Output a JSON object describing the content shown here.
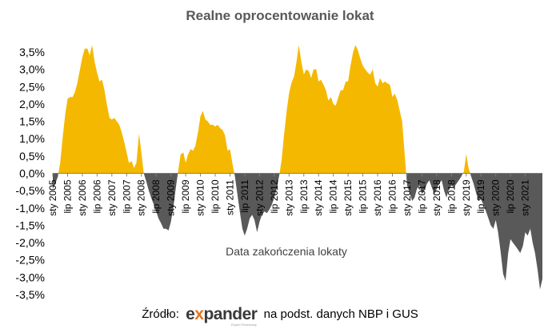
{
  "chart_data": {
    "type": "area",
    "title": "Realne oprocentowanie lokat",
    "xlabel": "Data zakończenia lokaty",
    "ylabel": "",
    "ylim": [
      -3.5,
      3.5
    ],
    "y_ticks": [
      "3,5%",
      "3,0%",
      "2,5%",
      "2,0%",
      "1,5%",
      "1,0%",
      "0,5%",
      "0,0%",
      "-0,5%",
      "-1,0%",
      "-1,5%",
      "-2,0%",
      "-2,5%",
      "-3,0%",
      "-3,5%"
    ],
    "x_range": [
      2005.0,
      2021.58
    ],
    "x_tick_labels": [
      {
        "label": "sty 2005",
        "x": 2005.0
      },
      {
        "label": "lip 2005",
        "x": 2005.5
      },
      {
        "label": "sty 2006",
        "x": 2006.0
      },
      {
        "label": "lip 2006",
        "x": 2006.5
      },
      {
        "label": "sty 2007",
        "x": 2007.0
      },
      {
        "label": "lip 2007",
        "x": 2007.5
      },
      {
        "label": "sty 2008",
        "x": 2008.0
      },
      {
        "label": "lip 2008",
        "x": 2008.5
      },
      {
        "label": "sty 2009",
        "x": 2009.0
      },
      {
        "label": "lip 2009",
        "x": 2009.5
      },
      {
        "label": "sty 2010",
        "x": 2010.0
      },
      {
        "label": "lip 2010",
        "x": 2010.5
      },
      {
        "label": "sty 2011",
        "x": 2011.0
      },
      {
        "label": "lip 2011",
        "x": 2011.5
      },
      {
        "label": "sty 2012",
        "x": 2012.0
      },
      {
        "label": "lip 2012",
        "x": 2012.5
      },
      {
        "label": "sty 2013",
        "x": 2013.0
      },
      {
        "label": "lip 2013",
        "x": 2013.5
      },
      {
        "label": "sty 2014",
        "x": 2014.0
      },
      {
        "label": "lip 2014",
        "x": 2014.5
      },
      {
        "label": "sty 2015",
        "x": 2015.0
      },
      {
        "label": "lip 2015",
        "x": 2015.5
      },
      {
        "label": "sty 2016",
        "x": 2016.0
      },
      {
        "label": "lip 2016",
        "x": 2016.5
      },
      {
        "label": "sty 2017",
        "x": 2017.0
      },
      {
        "label": "lip 2017",
        "x": 2017.5
      },
      {
        "label": "sty 2018",
        "x": 2018.0
      },
      {
        "label": "lip 2018",
        "x": 2018.5
      },
      {
        "label": "sty 2019",
        "x": 2019.0
      },
      {
        "label": "lip 2019",
        "x": 2019.5
      },
      {
        "label": "sty 2020",
        "x": 2020.0
      },
      {
        "label": "lip 2020",
        "x": 2020.5
      },
      {
        "label": "sty 2021",
        "x": 2021.0
      }
    ],
    "grid": false,
    "colors": {
      "positive": "#f5b800",
      "negative": "#595959"
    },
    "series": [
      {
        "points": [
          [
            2005.0,
            -0.45
          ],
          [
            2005.08,
            -0.3
          ],
          [
            2005.17,
            -0.1
          ],
          [
            2005.25,
            0.3
          ],
          [
            2005.33,
            1.0
          ],
          [
            2005.42,
            1.7
          ],
          [
            2005.5,
            2.15
          ],
          [
            2005.58,
            2.2
          ],
          [
            2005.67,
            2.2
          ],
          [
            2005.75,
            2.35
          ],
          [
            2005.83,
            2.6
          ],
          [
            2005.92,
            3.0
          ],
          [
            2006.0,
            3.35
          ],
          [
            2006.08,
            3.6
          ],
          [
            2006.17,
            3.6
          ],
          [
            2006.25,
            3.4
          ],
          [
            2006.33,
            3.7
          ],
          [
            2006.42,
            3.2
          ],
          [
            2006.5,
            2.9
          ],
          [
            2006.58,
            2.65
          ],
          [
            2006.67,
            2.7
          ],
          [
            2006.75,
            2.4
          ],
          [
            2006.83,
            2.0
          ],
          [
            2006.92,
            1.6
          ],
          [
            2007.0,
            1.55
          ],
          [
            2007.08,
            1.6
          ],
          [
            2007.17,
            1.5
          ],
          [
            2007.25,
            1.4
          ],
          [
            2007.33,
            1.2
          ],
          [
            2007.42,
            0.9
          ],
          [
            2007.5,
            0.6
          ],
          [
            2007.58,
            0.3
          ],
          [
            2007.67,
            0.35
          ],
          [
            2007.75,
            0.15
          ],
          [
            2007.83,
            0.3
          ],
          [
            2007.92,
            1.15
          ],
          [
            2008.0,
            0.6
          ],
          [
            2008.08,
            0.0
          ],
          [
            2008.17,
            -0.25
          ],
          [
            2008.25,
            -0.5
          ],
          [
            2008.33,
            -0.7
          ],
          [
            2008.42,
            -0.9
          ],
          [
            2008.5,
            -1.1
          ],
          [
            2008.58,
            -1.3
          ],
          [
            2008.67,
            -1.45
          ],
          [
            2008.75,
            -1.6
          ],
          [
            2008.83,
            -1.6
          ],
          [
            2008.92,
            -1.65
          ],
          [
            2009.0,
            -1.4
          ],
          [
            2009.08,
            -1.0
          ],
          [
            2009.17,
            -0.4
          ],
          [
            2009.25,
            0.1
          ],
          [
            2009.33,
            0.55
          ],
          [
            2009.42,
            0.6
          ],
          [
            2009.5,
            0.3
          ],
          [
            2009.58,
            0.55
          ],
          [
            2009.67,
            0.7
          ],
          [
            2009.75,
            0.65
          ],
          [
            2009.83,
            0.8
          ],
          [
            2009.92,
            1.2
          ],
          [
            2010.0,
            1.65
          ],
          [
            2010.08,
            1.8
          ],
          [
            2010.17,
            1.55
          ],
          [
            2010.25,
            1.5
          ],
          [
            2010.33,
            1.4
          ],
          [
            2010.42,
            1.4
          ],
          [
            2010.5,
            1.35
          ],
          [
            2010.58,
            1.4
          ],
          [
            2010.67,
            1.3
          ],
          [
            2010.75,
            1.25
          ],
          [
            2010.83,
            1.1
          ],
          [
            2010.92,
            0.65
          ],
          [
            2011.0,
            0.7
          ],
          [
            2011.08,
            0.3
          ],
          [
            2011.17,
            -0.1
          ],
          [
            2011.25,
            -0.6
          ],
          [
            2011.33,
            -1.1
          ],
          [
            2011.42,
            -1.6
          ],
          [
            2011.5,
            -1.8
          ],
          [
            2011.58,
            -1.6
          ],
          [
            2011.67,
            -1.3
          ],
          [
            2011.75,
            -1.2
          ],
          [
            2011.83,
            -1.35
          ],
          [
            2011.92,
            -1.7
          ],
          [
            2012.0,
            -1.4
          ],
          [
            2012.08,
            -1.2
          ],
          [
            2012.17,
            -1.1
          ],
          [
            2012.25,
            -1.15
          ],
          [
            2012.33,
            -1.05
          ],
          [
            2012.42,
            -0.9
          ],
          [
            2012.5,
            -0.7
          ],
          [
            2012.58,
            -0.45
          ],
          [
            2012.67,
            -0.05
          ],
          [
            2012.75,
            0.4
          ],
          [
            2012.83,
            1.1
          ],
          [
            2012.92,
            1.8
          ],
          [
            2013.0,
            2.3
          ],
          [
            2013.08,
            2.6
          ],
          [
            2013.17,
            2.8
          ],
          [
            2013.25,
            3.2
          ],
          [
            2013.33,
            3.7
          ],
          [
            2013.42,
            3.2
          ],
          [
            2013.5,
            2.85
          ],
          [
            2013.58,
            3.0
          ],
          [
            2013.67,
            2.95
          ],
          [
            2013.75,
            2.75
          ],
          [
            2013.83,
            3.0
          ],
          [
            2013.92,
            3.0
          ],
          [
            2014.0,
            2.65
          ],
          [
            2014.08,
            2.7
          ],
          [
            2014.17,
            2.55
          ],
          [
            2014.25,
            2.4
          ],
          [
            2014.33,
            2.1
          ],
          [
            2014.42,
            2.2
          ],
          [
            2014.5,
            2.0
          ],
          [
            2014.58,
            1.95
          ],
          [
            2014.67,
            2.2
          ],
          [
            2014.75,
            2.4
          ],
          [
            2014.83,
            2.4
          ],
          [
            2014.92,
            2.65
          ],
          [
            2015.0,
            2.65
          ],
          [
            2015.08,
            3.1
          ],
          [
            2015.17,
            3.5
          ],
          [
            2015.25,
            3.7
          ],
          [
            2015.33,
            3.55
          ],
          [
            2015.42,
            3.3
          ],
          [
            2015.5,
            3.1
          ],
          [
            2015.58,
            3.0
          ],
          [
            2015.67,
            2.9
          ],
          [
            2015.75,
            2.85
          ],
          [
            2015.83,
            3.0
          ],
          [
            2015.92,
            2.6
          ],
          [
            2016.0,
            2.5
          ],
          [
            2016.08,
            2.75
          ],
          [
            2016.17,
            2.6
          ],
          [
            2016.25,
            2.65
          ],
          [
            2016.33,
            2.6
          ],
          [
            2016.42,
            2.55
          ],
          [
            2016.5,
            2.2
          ],
          [
            2016.58,
            2.3
          ],
          [
            2016.67,
            2.1
          ],
          [
            2016.75,
            1.8
          ],
          [
            2016.83,
            1.5
          ],
          [
            2016.92,
            0.5
          ],
          [
            2017.0,
            -0.35
          ],
          [
            2017.08,
            -0.55
          ],
          [
            2017.17,
            -0.8
          ],
          [
            2017.25,
            -0.7
          ],
          [
            2017.33,
            -0.45
          ],
          [
            2017.42,
            -0.35
          ],
          [
            2017.5,
            -0.6
          ],
          [
            2017.58,
            -0.5
          ],
          [
            2017.67,
            -0.3
          ],
          [
            2017.75,
            -0.2
          ],
          [
            2017.83,
            -0.4
          ],
          [
            2017.92,
            -0.6
          ],
          [
            2018.0,
            -0.45
          ],
          [
            2018.08,
            -0.3
          ],
          [
            2018.17,
            -0.2
          ],
          [
            2018.25,
            -0.5
          ],
          [
            2018.33,
            -0.7
          ],
          [
            2018.42,
            -0.45
          ],
          [
            2018.5,
            -0.35
          ],
          [
            2018.58,
            -0.4
          ],
          [
            2018.67,
            -0.3
          ],
          [
            2018.75,
            -0.2
          ],
          [
            2018.83,
            -0.1
          ],
          [
            2018.92,
            0.05
          ],
          [
            2019.0,
            0.55
          ],
          [
            2019.08,
            0.15
          ],
          [
            2019.17,
            -0.1
          ],
          [
            2019.25,
            -0.3
          ],
          [
            2019.33,
            -0.55
          ],
          [
            2019.42,
            -0.8
          ],
          [
            2019.5,
            -0.75
          ],
          [
            2019.58,
            -0.9
          ],
          [
            2019.67,
            -1.1
          ],
          [
            2019.75,
            -1.3
          ],
          [
            2019.83,
            -1.5
          ],
          [
            2019.92,
            -1.6
          ],
          [
            2020.0,
            -1.35
          ],
          [
            2020.08,
            -1.7
          ],
          [
            2020.17,
            -2.3
          ],
          [
            2020.25,
            -2.9
          ],
          [
            2020.33,
            -3.1
          ],
          [
            2020.42,
            -2.3
          ],
          [
            2020.5,
            -1.9
          ],
          [
            2020.58,
            -2.0
          ],
          [
            2020.67,
            -2.1
          ],
          [
            2020.75,
            -2.2
          ],
          [
            2020.83,
            -2.3
          ],
          [
            2020.92,
            -2.1
          ],
          [
            2021.0,
            -1.7
          ],
          [
            2021.08,
            -1.8
          ],
          [
            2021.17,
            -1.6
          ],
          [
            2021.25,
            -2.0
          ],
          [
            2021.33,
            -2.3
          ],
          [
            2021.42,
            -2.8
          ],
          [
            2021.5,
            -3.35
          ],
          [
            2021.58,
            -3.05
          ]
        ]
      }
    ]
  },
  "footer": {
    "source_prefix": "Źródło:",
    "brand_left": "e",
    "brand_x": "x",
    "brand_right": "pander",
    "brand_tagline": "Expert Finansowy",
    "source_suffix": "na podst. danych NBP i GUS"
  }
}
